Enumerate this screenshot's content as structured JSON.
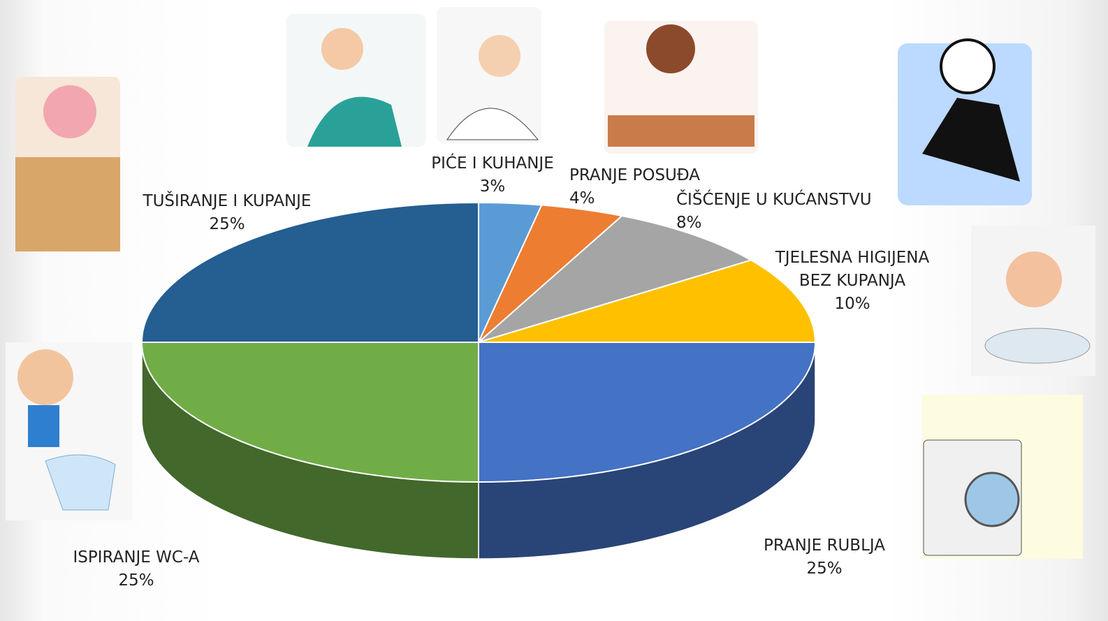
{
  "chart_data": {
    "type": "pie3d",
    "categories": [
      "PIĆE I KUHANJE",
      "PRANJE POSUĐA",
      "ČIŠĆENJE U KUĆANSTVU",
      "TJELESNA HIGIJENA BEZ KUPANJA",
      "PRANJE RUBLJA",
      "ISPIRANJE WC-A",
      "TUŠIRANJE I KUPANJE"
    ],
    "values": [
      3,
      4,
      8,
      10,
      25,
      25,
      25
    ],
    "value_labels": [
      "3%",
      "4%",
      "8%",
      "10%",
      "25%",
      "25%",
      "25%"
    ],
    "colors": [
      "#5b9bd5",
      "#ed7d31",
      "#a5a5a5",
      "#ffc000",
      "#4472c4",
      "#70ad47",
      "#255e91"
    ]
  }
}
